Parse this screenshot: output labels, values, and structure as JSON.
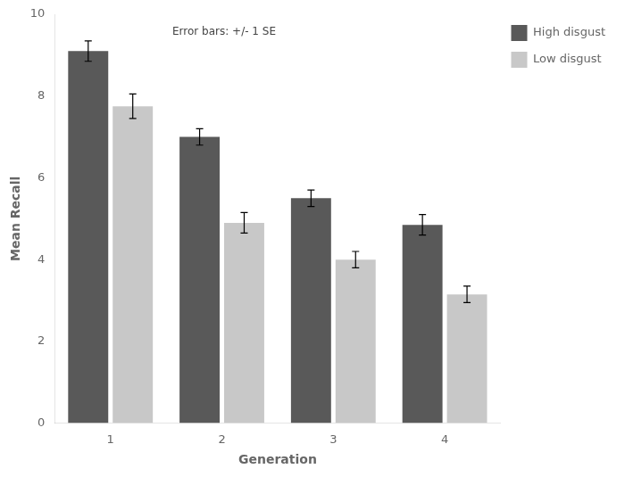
{
  "chart_data": {
    "type": "bar",
    "categories": [
      "1",
      "2",
      "3",
      "4"
    ],
    "xlabel": "Generation",
    "ylabel": "Mean Recall",
    "annotation": "Error bars: +/- 1 SE",
    "series": [
      {
        "name": "High disgust",
        "color": "#595959",
        "values": [
          9.1,
          7.0,
          5.5,
          4.85
        ],
        "errors": [
          0.25,
          0.2,
          0.2,
          0.25
        ]
      },
      {
        "name": "Low disgust",
        "color": "#c8c8c8",
        "values": [
          7.75,
          4.9,
          4.0,
          3.15
        ],
        "errors": [
          0.3,
          0.25,
          0.2,
          0.2
        ]
      }
    ],
    "ylim": [
      0,
      10
    ],
    "yticks": [
      0,
      2,
      4,
      6,
      8,
      10
    ],
    "grid": false,
    "legend": "right"
  }
}
